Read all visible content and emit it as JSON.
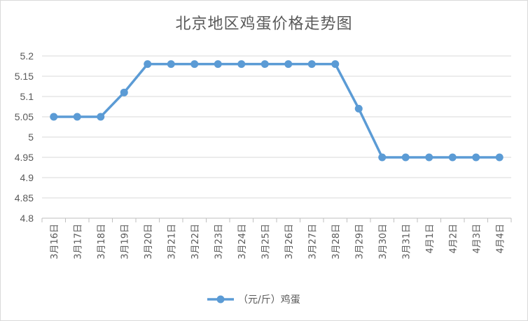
{
  "chart_data": {
    "type": "line",
    "title": "北京地区鸡蛋价格走势图",
    "xlabel": "",
    "ylabel": "",
    "categories": [
      "3月16日",
      "3月17日",
      "3月18日",
      "3月19日",
      "3月20日",
      "3月21日",
      "3月22日",
      "3月23日",
      "3月24日",
      "3月25日",
      "3月26日",
      "3月27日",
      "3月28日",
      "3月29日",
      "3月30日",
      "3月31日",
      "4月1日",
      "4月2日",
      "4月3日",
      "4月4日"
    ],
    "series": [
      {
        "name": "（元/斤）鸡蛋",
        "values": [
          5.05,
          5.05,
          5.05,
          5.11,
          5.18,
          5.18,
          5.18,
          5.18,
          5.18,
          5.18,
          5.18,
          5.18,
          5.18,
          5.07,
          4.95,
          4.95,
          4.95,
          4.95,
          4.95,
          4.95
        ]
      }
    ],
    "ylim": [
      4.8,
      5.2
    ],
    "yticks": [
      "5.2",
      "5.15",
      "5.1",
      "5.05",
      "5",
      "4.95",
      "4.9",
      "4.85",
      "4.8"
    ],
    "grid": true,
    "legend": "bottom",
    "line_color": "#5b9bd5",
    "grid_color": "#d9d9d9"
  }
}
